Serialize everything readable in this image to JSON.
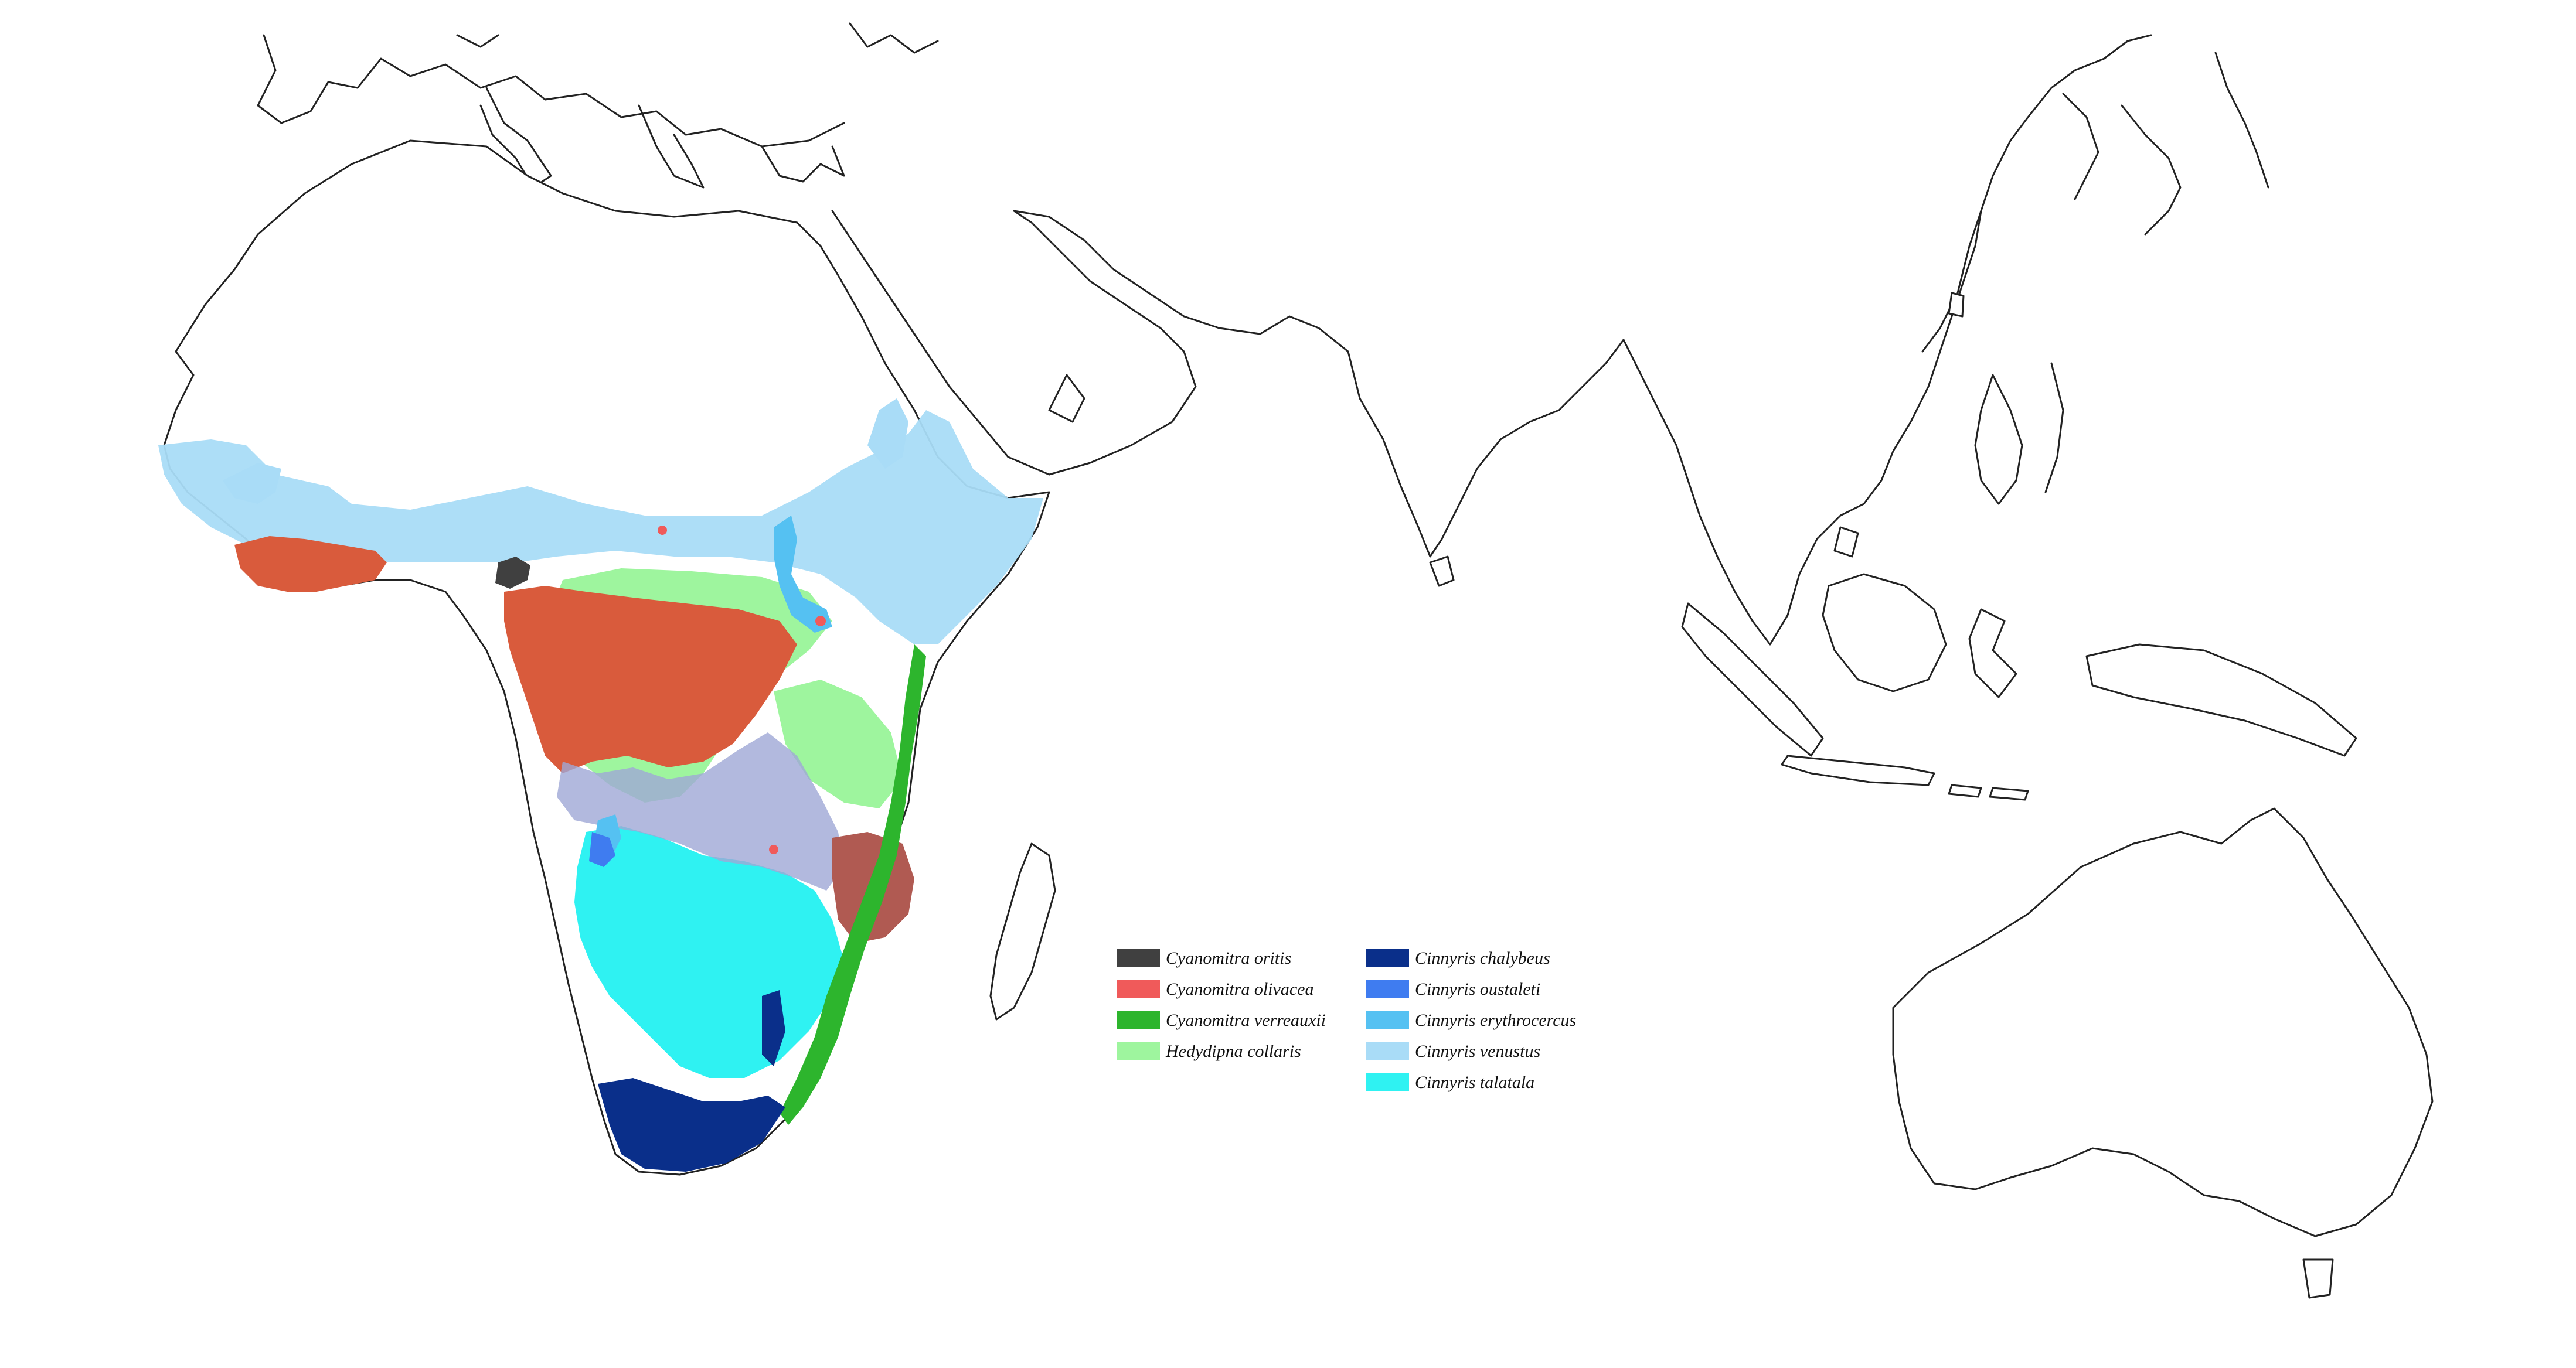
{
  "map": {
    "region": "Africa, Asia and Australia",
    "legend": {
      "columns": [
        [
          {
            "name": "Cyanomitra oritis",
            "color": "#404040"
          },
          {
            "name": "Cyanomitra olivacea",
            "color": "#f05a5a"
          },
          {
            "name": "Cyanomitra verreauxii",
            "color": "#2db52d"
          },
          {
            "name": "Hedydipna collaris",
            "color": "#9ef59e"
          }
        ],
        [
          {
            "name": "Cinnyris chalybeus",
            "color": "#0a2f8a"
          },
          {
            "name": "Cinnyris oustaleti",
            "color": "#3f7cf0"
          },
          {
            "name": "Cinnyris erythrocercus",
            "color": "#55c1f2"
          },
          {
            "name": "Cinnyris venustus",
            "color": "#a9dcf7"
          },
          {
            "name": "Cinnyris talatala",
            "color": "#2ff2f2"
          }
        ]
      ]
    },
    "range_colors": {
      "olivacea_dense": "#d95b3c",
      "mixed_purple": "#9fa7d6",
      "mixed_brown": "#b05a52",
      "coast_line": "#222222"
    }
  }
}
